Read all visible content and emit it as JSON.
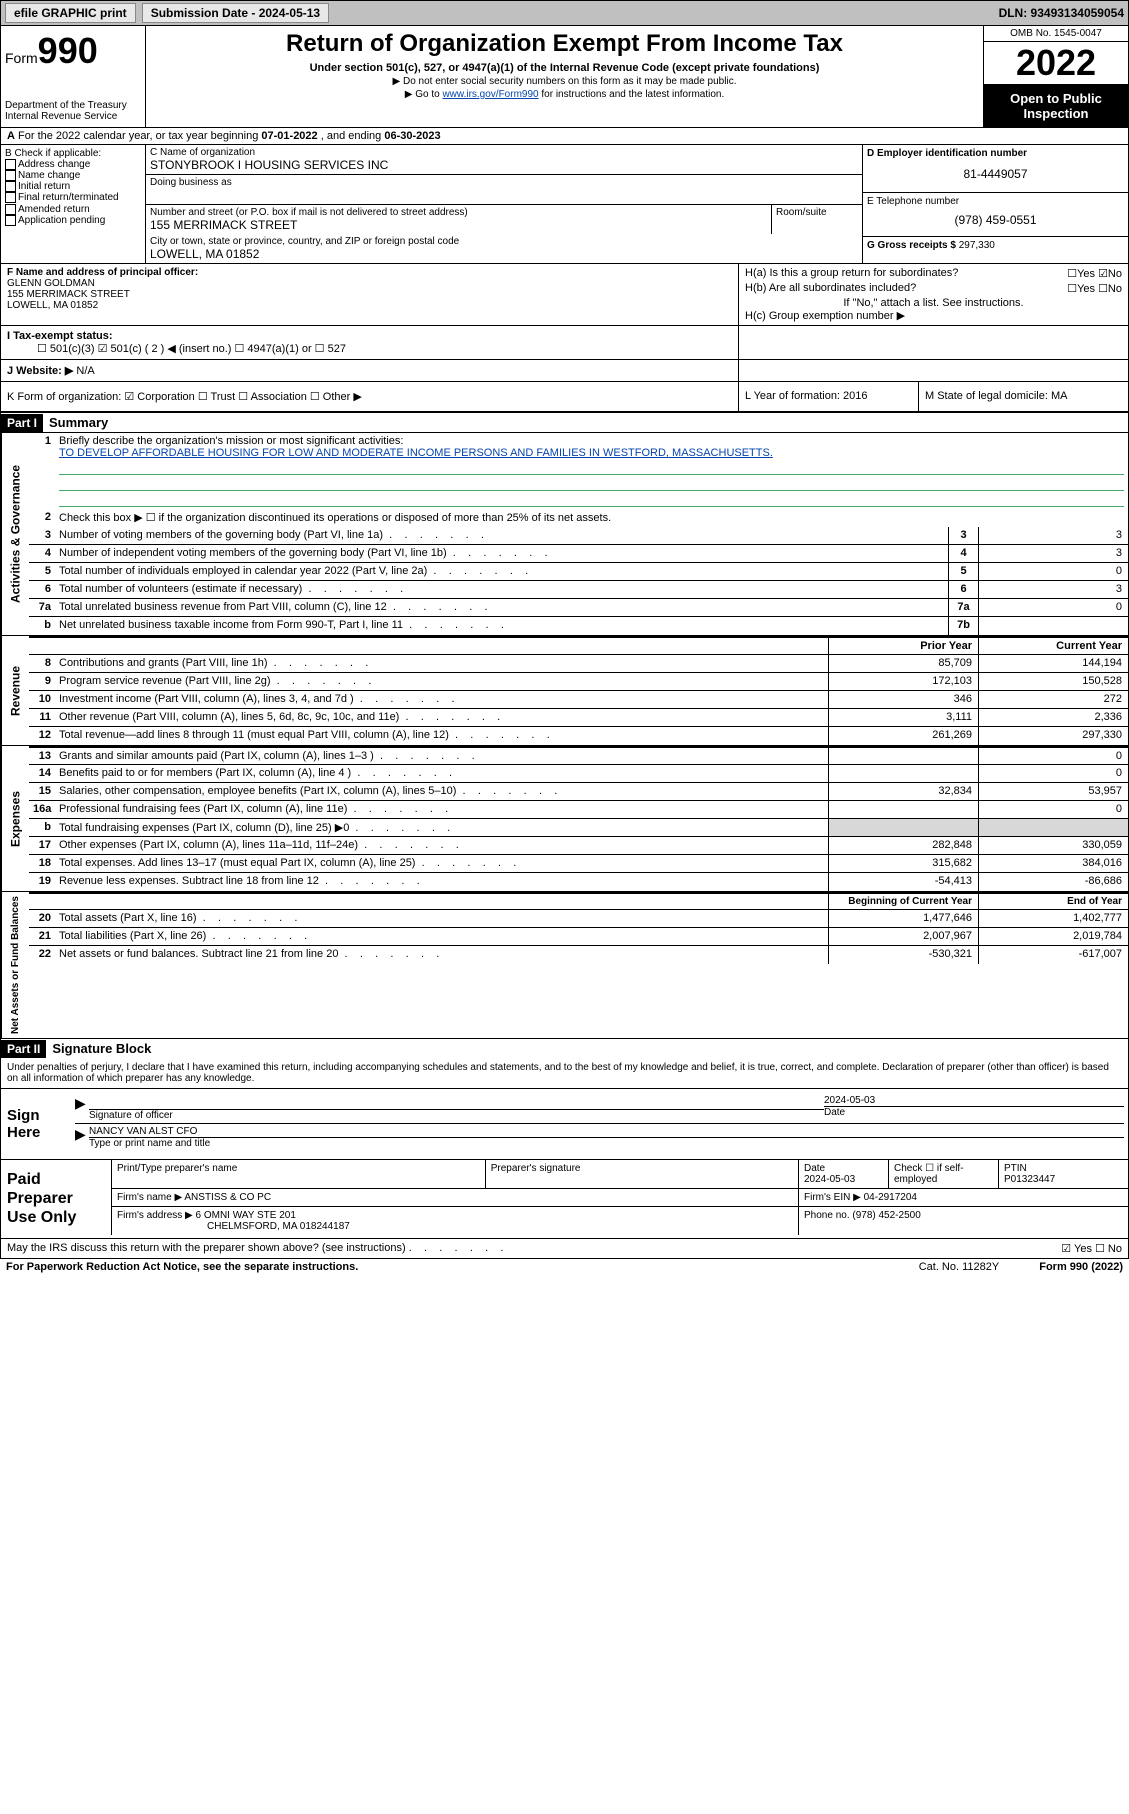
{
  "colors": {
    "link": "#0645ad",
    "check": "#0a5",
    "strip_bg": "#c0c0c0",
    "shade": "#d8d8d8"
  },
  "topstrip": {
    "efile": "efile GRAPHIC print",
    "submission_label": "Submission Date - 2024-05-13",
    "dln": "DLN: 93493134059054"
  },
  "header": {
    "form_word": "Form",
    "form_num": "990",
    "dept": "Department of the Treasury",
    "irs": "Internal Revenue Service",
    "title": "Return of Organization Exempt From Income Tax",
    "sub": "Under section 501(c), 527, or 4947(a)(1) of the Internal Revenue Code (except private foundations)",
    "b1": "▶ Do not enter social security numbers on this form as it may be made public.",
    "b2_pre": "▶ Go to ",
    "b2_link": "www.irs.gov/Form990",
    "b2_post": " for instructions and the latest information.",
    "omb": "OMB No. 1545-0047",
    "year": "2022",
    "open": "Open to Public Inspection"
  },
  "rowA": {
    "text_pre": "For the 2022 calendar year, or tax year beginning ",
    "begin": "07-01-2022",
    "mid": "   , and ending ",
    "end": "06-30-2023"
  },
  "colB": {
    "hdr": "B Check if applicable:",
    "items": [
      "Address change",
      "Name change",
      "Initial return",
      "Final return/terminated",
      "Amended return",
      "Application pending"
    ]
  },
  "colC": {
    "name_lbl": "C Name of organization",
    "name": "STONYBROOK I HOUSING SERVICES INC",
    "dba_lbl": "Doing business as",
    "street_lbl": "Number and street (or P.O. box if mail is not delivered to street address)",
    "street": "155 MERRIMACK STREET",
    "room_lbl": "Room/suite",
    "city_lbl": "City or town, state or province, country, and ZIP or foreign postal code",
    "city": "LOWELL, MA  01852"
  },
  "colDE": {
    "d_lbl": "D Employer identification number",
    "d_val": "81-4449057",
    "e_lbl": "E Telephone number",
    "e_val": "(978) 459-0551",
    "g_lbl": "G Gross receipts $ ",
    "g_val": "297,330"
  },
  "colF": {
    "lbl": "F  Name and address of principal officer:",
    "name": "GLENN GOLDMAN",
    "street": "155 MERRIMACK STREET",
    "city": "LOWELL, MA  01852"
  },
  "colH": {
    "ha": "H(a)  Is this a group return for subordinates?",
    "ha_ans": "☐Yes ☑No",
    "hb": "H(b)  Are all subordinates included?",
    "hb_ans": "☐Yes ☐No",
    "hb_note": "If \"No,\" attach a list. See instructions.",
    "hc": "H(c)  Group exemption number ▶"
  },
  "rowI": {
    "lbl": "I     Tax-exempt status:",
    "opts": "☐ 501(c)(3)   ☑ 501(c) ( 2 ) ◀ (insert no.)    ☐ 4947(a)(1) or   ☐ 527"
  },
  "rowJ": {
    "lbl": "J    Website: ▶",
    "val": " N/A"
  },
  "rowK": {
    "lbl": "K Form of organization:  ☑ Corporation  ☐ Trust  ☐ Association  ☐ Other ▶",
    "L": "L Year of formation: 2016",
    "M": "M State of legal domicile: MA"
  },
  "part1": {
    "hdr": "Part I",
    "title": "Summary"
  },
  "sections": {
    "ag": {
      "label": "Activities & Governance",
      "r1_num": "1",
      "r1_desc": "Briefly describe the organization's mission or most significant activities:",
      "r1_mission": "TO DEVELOP AFFORDABLE HOUSING FOR LOW AND MODERATE INCOME PERSONS AND FAMILIES IN WESTFORD, MASSACHUSETTS.",
      "r2_num": "2",
      "r2_desc": "Check this box ▶ ☐  if the organization discontinued its operations or disposed of more than 25% of its net assets.",
      "rows": [
        {
          "n": "3",
          "d": "Number of voting members of the governing body (Part VI, line 1a)",
          "box": "3",
          "v": "3"
        },
        {
          "n": "4",
          "d": "Number of independent voting members of the governing body (Part VI, line 1b)",
          "box": "4",
          "v": "3"
        },
        {
          "n": "5",
          "d": "Total number of individuals employed in calendar year 2022 (Part V, line 2a)",
          "box": "5",
          "v": "0"
        },
        {
          "n": "6",
          "d": "Total number of volunteers (estimate if necessary)",
          "box": "6",
          "v": "3"
        },
        {
          "n": "7a",
          "d": "Total unrelated business revenue from Part VIII, column (C), line 12",
          "box": "7a",
          "v": "0"
        },
        {
          "n": "b",
          "d": "Net unrelated business taxable income from Form 990-T, Part I, line 11",
          "box": "7b",
          "v": ""
        }
      ]
    },
    "rev": {
      "label": "Revenue",
      "hdr_prior": "Prior Year",
      "hdr_curr": "Current Year",
      "rows": [
        {
          "n": "8",
          "d": "Contributions and grants (Part VIII, line 1h)",
          "p": "85,709",
          "c": "144,194"
        },
        {
          "n": "9",
          "d": "Program service revenue (Part VIII, line 2g)",
          "p": "172,103",
          "c": "150,528"
        },
        {
          "n": "10",
          "d": "Investment income (Part VIII, column (A), lines 3, 4, and 7d )",
          "p": "346",
          "c": "272"
        },
        {
          "n": "11",
          "d": "Other revenue (Part VIII, column (A), lines 5, 6d, 8c, 9c, 10c, and 11e)",
          "p": "3,111",
          "c": "2,336"
        },
        {
          "n": "12",
          "d": "Total revenue—add lines 8 through 11 (must equal Part VIII, column (A), line 12)",
          "p": "261,269",
          "c": "297,330"
        }
      ]
    },
    "exp": {
      "label": "Expenses",
      "rows": [
        {
          "n": "13",
          "d": "Grants and similar amounts paid (Part IX, column (A), lines 1–3 )",
          "p": "",
          "c": "0"
        },
        {
          "n": "14",
          "d": "Benefits paid to or for members (Part IX, column (A), line 4 )",
          "p": "",
          "c": "0"
        },
        {
          "n": "15",
          "d": "Salaries, other compensation, employee benefits (Part IX, column (A), lines 5–10)",
          "p": "32,834",
          "c": "53,957"
        },
        {
          "n": "16a",
          "d": "Professional fundraising fees (Part IX, column (A), line 11e)",
          "p": "",
          "c": "0"
        },
        {
          "n": "b",
          "d": "Total fundraising expenses (Part IX, column (D), line 25) ▶0",
          "p": "__shade__",
          "c": "__shade__"
        },
        {
          "n": "17",
          "d": "Other expenses (Part IX, column (A), lines 11a–11d, 11f–24e)",
          "p": "282,848",
          "c": "330,059"
        },
        {
          "n": "18",
          "d": "Total expenses. Add lines 13–17 (must equal Part IX, column (A), line 25)",
          "p": "315,682",
          "c": "384,016"
        },
        {
          "n": "19",
          "d": "Revenue less expenses. Subtract line 18 from line 12",
          "p": "-54,413",
          "c": "-86,686"
        }
      ]
    },
    "na": {
      "label": "Net Assets or Fund Balances",
      "hdr_prior": "Beginning of Current Year",
      "hdr_curr": "End of Year",
      "rows": [
        {
          "n": "20",
          "d": "Total assets (Part X, line 16)",
          "p": "1,477,646",
          "c": "1,402,777"
        },
        {
          "n": "21",
          "d": "Total liabilities (Part X, line 26)",
          "p": "2,007,967",
          "c": "2,019,784"
        },
        {
          "n": "22",
          "d": "Net assets or fund balances. Subtract line 21 from line 20",
          "p": "-530,321",
          "c": "-617,007"
        }
      ]
    }
  },
  "part2": {
    "hdr": "Part II",
    "title": "Signature Block",
    "decl": "Under penalties of perjury, I declare that I have examined this return, including accompanying schedules and statements, and to the best of my knowledge and belief, it is true, correct, and complete. Declaration of preparer (other than officer) is based on all information of which preparer has any knowledge."
  },
  "sign": {
    "left": "Sign Here",
    "sig_lbl": "Signature of officer",
    "date": "2024-05-03",
    "date_lbl": "Date",
    "name": "NANCY VAN ALST CFO",
    "name_lbl": "Type or print name and title"
  },
  "paid": {
    "left1": "Paid",
    "left2": "Preparer",
    "left3": "Use Only",
    "h1": "Print/Type preparer's name",
    "h2": "Preparer's signature",
    "h3": "Date",
    "h3v": "2024-05-03",
    "h4": "Check ☐ if self-employed",
    "h5": "PTIN",
    "h5v": "P01323447",
    "firm_lbl": "Firm's name    ▶ ",
    "firm": "ANSTISS & CO PC",
    "ein_lbl": "Firm's EIN ▶ ",
    "ein": "04-2917204",
    "addr_lbl": "Firm's address ▶ ",
    "addr1": "6 OMNI WAY STE 201",
    "addr2": "CHELMSFORD, MA  018244187",
    "phone_lbl": "Phone no. ",
    "phone": "(978) 452-2500"
  },
  "footer": {
    "q": "May the IRS discuss this return with the preparer shown above? (see instructions)",
    "ans": "☑ Yes  ☐ No",
    "pra": "For Paperwork Reduction Act Notice, see the separate instructions.",
    "cat": "Cat. No. 11282Y",
    "form": "Form 990 (2022)"
  }
}
